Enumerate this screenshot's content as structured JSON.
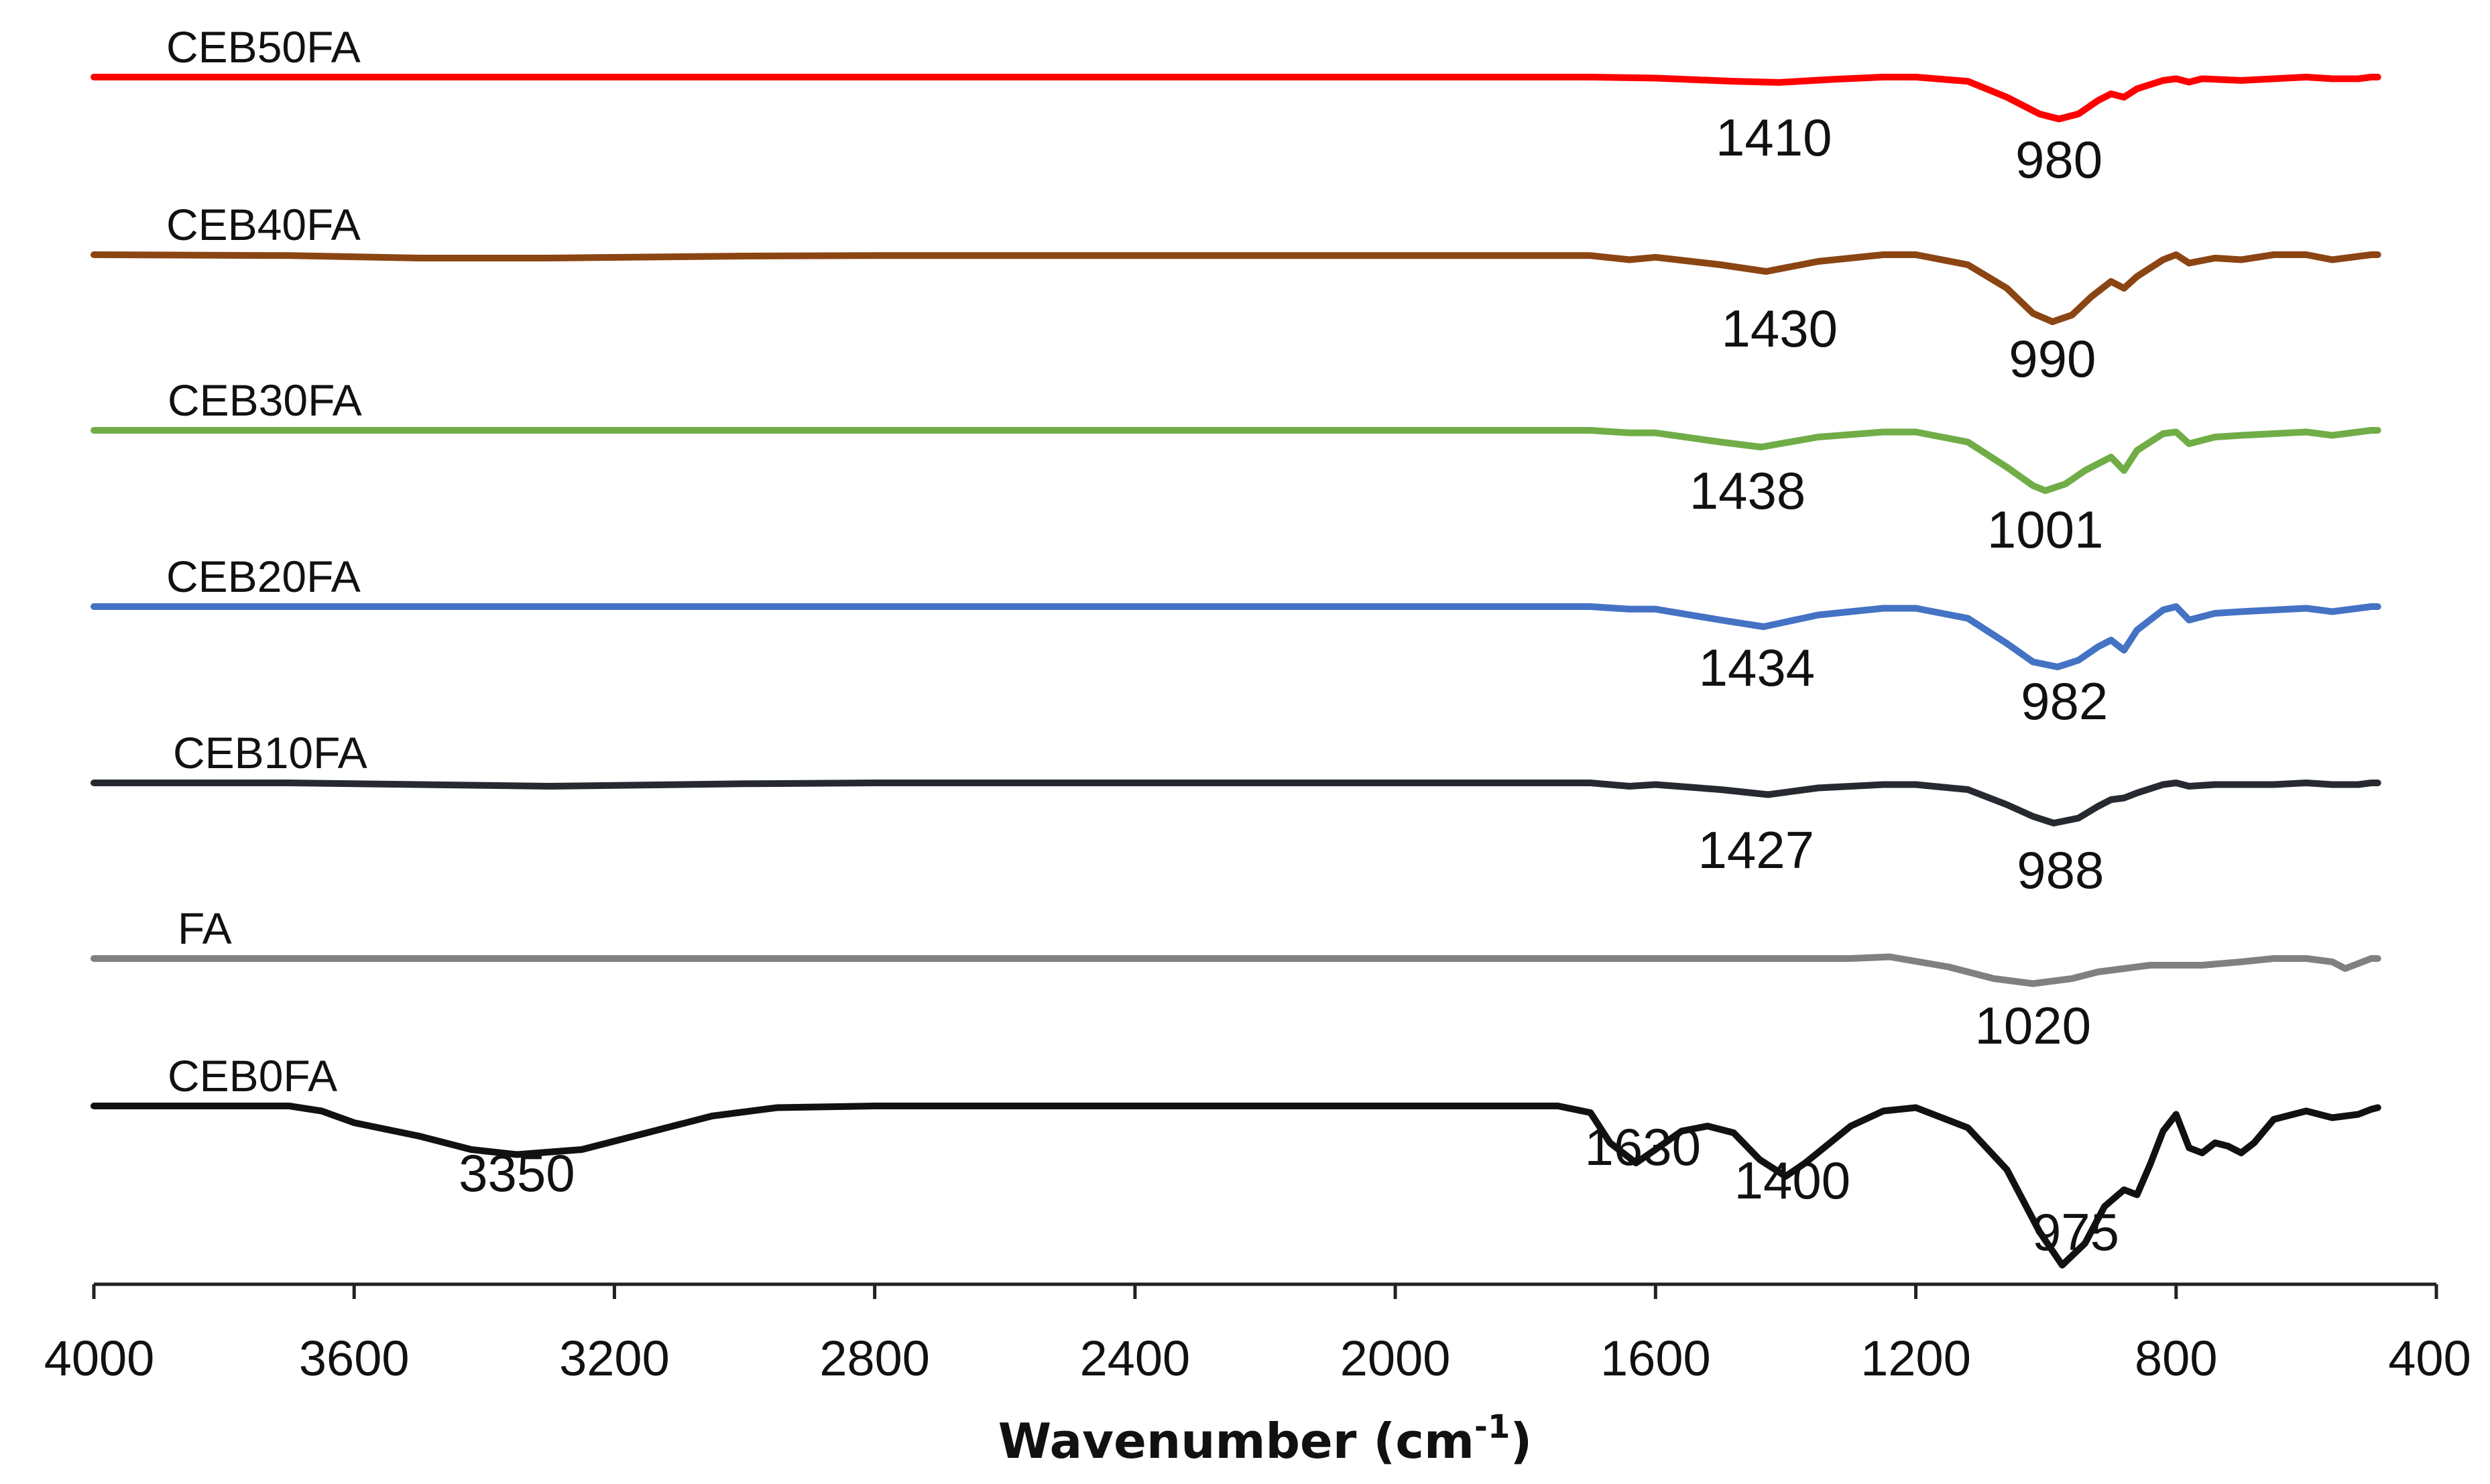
{
  "chart_data": {
    "type": "line",
    "title": "",
    "xlabel": "Wavenumber (cm",
    "xlabel_sup": "-1",
    "xlabel_close": ")",
    "ylabel": "",
    "xlim": [
      4000,
      400
    ],
    "x_ticks": [
      4000,
      3600,
      3200,
      2800,
      2400,
      2000,
      1600,
      1200,
      800,
      400
    ],
    "x_tick_labels": [
      "4000",
      "3600",
      "3200",
      "2800",
      "2400",
      "2000",
      "1600",
      "1200",
      "800",
      "400"
    ],
    "x_reversed": true,
    "grid": false,
    "legend": "none",
    "y_scale": "stacked offset transmittance (no y-axis shown)",
    "series": [
      {
        "name": "CEB50FA",
        "color": "#ff0000",
        "peaks": [
          {
            "x": 1410,
            "label": "1410"
          },
          {
            "x": 980,
            "label": "980"
          }
        ],
        "points": [
          [
            4000,
            0
          ],
          [
            3700,
            0
          ],
          [
            3200,
            0
          ],
          [
            2800,
            0
          ],
          [
            2000,
            0
          ],
          [
            1700,
            0
          ],
          [
            1600,
            -0.6
          ],
          [
            1480,
            -2.5
          ],
          [
            1410,
            -3.2
          ],
          [
            1330,
            -1.4
          ],
          [
            1250,
            0
          ],
          [
            1200,
            0
          ],
          [
            1120,
            -2.5
          ],
          [
            1060,
            -12
          ],
          [
            1010,
            -22
          ],
          [
            980,
            -25
          ],
          [
            950,
            -22
          ],
          [
            920,
            -14
          ],
          [
            900,
            -10
          ],
          [
            880,
            -12
          ],
          [
            860,
            -7
          ],
          [
            820,
            -2
          ],
          [
            800,
            -1
          ],
          [
            780,
            -3
          ],
          [
            760,
            -1
          ],
          [
            700,
            -2
          ],
          [
            650,
            -1
          ],
          [
            600,
            0
          ],
          [
            560,
            -1
          ],
          [
            520,
            -1
          ],
          [
            500,
            0
          ],
          [
            490,
            0
          ]
        ]
      },
      {
        "name": "CEB40FA",
        "color": "#8b4513",
        "peaks": [
          {
            "x": 1430,
            "label": "1430"
          },
          {
            "x": 990,
            "label": "990"
          }
        ],
        "points": [
          [
            4000,
            0
          ],
          [
            3700,
            -0.5
          ],
          [
            3500,
            -2
          ],
          [
            3300,
            -2
          ],
          [
            3000,
            -0.8
          ],
          [
            2800,
            -0.5
          ],
          [
            2000,
            -0.5
          ],
          [
            1700,
            -0.5
          ],
          [
            1640,
            -3
          ],
          [
            1600,
            -1.5
          ],
          [
            1500,
            -6
          ],
          [
            1430,
            -10
          ],
          [
            1350,
            -4
          ],
          [
            1250,
            0
          ],
          [
            1200,
            0
          ],
          [
            1120,
            -6
          ],
          [
            1060,
            -20
          ],
          [
            1020,
            -35
          ],
          [
            990,
            -40
          ],
          [
            960,
            -36
          ],
          [
            930,
            -25
          ],
          [
            900,
            -16
          ],
          [
            880,
            -20
          ],
          [
            860,
            -13
          ],
          [
            820,
            -3
          ],
          [
            800,
            0
          ],
          [
            780,
            -5
          ],
          [
            740,
            -2
          ],
          [
            700,
            -3
          ],
          [
            650,
            0
          ],
          [
            600,
            0
          ],
          [
            560,
            -3
          ],
          [
            520,
            -1
          ],
          [
            500,
            0
          ],
          [
            490,
            0
          ]
        ]
      },
      {
        "name": "CEB30FA",
        "color": "#70ad47",
        "peaks": [
          {
            "x": 1438,
            "label": "1438"
          },
          {
            "x": 1001,
            "label": "1001"
          }
        ],
        "points": [
          [
            4000,
            0
          ],
          [
            3700,
            0
          ],
          [
            3200,
            0
          ],
          [
            2800,
            0
          ],
          [
            2000,
            0
          ],
          [
            1700,
            0
          ],
          [
            1640,
            -1.5
          ],
          [
            1600,
            -1.5
          ],
          [
            1500,
            -7
          ],
          [
            1438,
            -10
          ],
          [
            1350,
            -4
          ],
          [
            1250,
            -1
          ],
          [
            1200,
            -1
          ],
          [
            1120,
            -7
          ],
          [
            1060,
            -22
          ],
          [
            1020,
            -33
          ],
          [
            1001,
            -36
          ],
          [
            970,
            -32
          ],
          [
            940,
            -24
          ],
          [
            900,
            -16
          ],
          [
            880,
            -24
          ],
          [
            860,
            -12
          ],
          [
            820,
            -2
          ],
          [
            800,
            -1
          ],
          [
            780,
            -8
          ],
          [
            740,
            -4
          ],
          [
            700,
            -3
          ],
          [
            650,
            -2
          ],
          [
            600,
            -1
          ],
          [
            560,
            -3
          ],
          [
            520,
            -1
          ],
          [
            500,
            0
          ],
          [
            490,
            0
          ]
        ]
      },
      {
        "name": "CEB20FA",
        "color": "#4472c4",
        "peaks": [
          {
            "x": 1434,
            "label": "1434"
          },
          {
            "x": 982,
            "label": "982"
          }
        ],
        "points": [
          [
            4000,
            0
          ],
          [
            3700,
            0
          ],
          [
            3200,
            0
          ],
          [
            2800,
            0
          ],
          [
            2000,
            0
          ],
          [
            1700,
            0
          ],
          [
            1640,
            -1.5
          ],
          [
            1600,
            -1.5
          ],
          [
            1500,
            -8
          ],
          [
            1434,
            -12
          ],
          [
            1350,
            -5
          ],
          [
            1250,
            -1
          ],
          [
            1200,
            -1
          ],
          [
            1120,
            -7
          ],
          [
            1060,
            -22
          ],
          [
            1020,
            -33
          ],
          [
            982,
            -36
          ],
          [
            950,
            -32
          ],
          [
            920,
            -24
          ],
          [
            900,
            -20
          ],
          [
            880,
            -26
          ],
          [
            860,
            -14
          ],
          [
            820,
            -2
          ],
          [
            800,
            0
          ],
          [
            780,
            -8
          ],
          [
            740,
            -4
          ],
          [
            700,
            -3
          ],
          [
            650,
            -2
          ],
          [
            600,
            -1
          ],
          [
            560,
            -3
          ],
          [
            520,
            -1
          ],
          [
            500,
            0
          ],
          [
            490,
            0
          ]
        ]
      },
      {
        "name": "CEB10FA",
        "color": "#262a30",
        "peaks": [
          {
            "x": 1427,
            "label": "1427"
          },
          {
            "x": 988,
            "label": "988"
          }
        ],
        "points": [
          [
            4000,
            0
          ],
          [
            3700,
            0
          ],
          [
            3500,
            -1
          ],
          [
            3300,
            -2
          ],
          [
            3000,
            -0.5
          ],
          [
            2800,
            0
          ],
          [
            2000,
            0
          ],
          [
            1700,
            0
          ],
          [
            1640,
            -2
          ],
          [
            1600,
            -1
          ],
          [
            1500,
            -4
          ],
          [
            1427,
            -7
          ],
          [
            1350,
            -3
          ],
          [
            1250,
            -1
          ],
          [
            1200,
            -1
          ],
          [
            1120,
            -4
          ],
          [
            1060,
            -13
          ],
          [
            1020,
            -20
          ],
          [
            988,
            -24
          ],
          [
            950,
            -21
          ],
          [
            920,
            -14
          ],
          [
            900,
            -10
          ],
          [
            880,
            -9
          ],
          [
            860,
            -6
          ],
          [
            820,
            -1
          ],
          [
            800,
            0
          ],
          [
            780,
            -2
          ],
          [
            740,
            -1
          ],
          [
            700,
            -1
          ],
          [
            650,
            -1
          ],
          [
            600,
            0
          ],
          [
            560,
            -1
          ],
          [
            520,
            -1
          ],
          [
            500,
            0
          ],
          [
            490,
            0
          ]
        ]
      },
      {
        "name": "FA",
        "color": "#808080",
        "peaks": [
          {
            "x": 1020,
            "label": "1020"
          }
        ],
        "points": [
          [
            4000,
            0
          ],
          [
            3700,
            0
          ],
          [
            3200,
            0
          ],
          [
            2800,
            0
          ],
          [
            2000,
            0
          ],
          [
            1700,
            0
          ],
          [
            1600,
            0
          ],
          [
            1500,
            0
          ],
          [
            1300,
            0
          ],
          [
            1240,
            1
          ],
          [
            1150,
            -5
          ],
          [
            1080,
            -12
          ],
          [
            1020,
            -15
          ],
          [
            960,
            -12
          ],
          [
            920,
            -8
          ],
          [
            880,
            -6
          ],
          [
            840,
            -4
          ],
          [
            800,
            -4
          ],
          [
            760,
            -4
          ],
          [
            700,
            -2
          ],
          [
            650,
            0
          ],
          [
            600,
            0
          ],
          [
            560,
            -2
          ],
          [
            540,
            -6
          ],
          [
            520,
            -3
          ],
          [
            500,
            0
          ],
          [
            490,
            0
          ]
        ]
      },
      {
        "name": "CEB0FA",
        "color": "#111111",
        "peaks": [
          {
            "x": 3350,
            "label": "3350"
          },
          {
            "x": 1630,
            "label": "1630"
          },
          {
            "x": 1400,
            "label": "1400"
          },
          {
            "x": 975,
            "label": "975"
          }
        ],
        "points": [
          [
            4000,
            0
          ],
          [
            3700,
            0
          ],
          [
            3650,
            -3
          ],
          [
            3600,
            -10
          ],
          [
            3500,
            -18
          ],
          [
            3420,
            -26
          ],
          [
            3350,
            -29
          ],
          [
            3250,
            -26
          ],
          [
            3150,
            -16
          ],
          [
            3050,
            -6
          ],
          [
            2950,
            -1
          ],
          [
            2800,
            0
          ],
          [
            2000,
            0
          ],
          [
            1750,
            0
          ],
          [
            1700,
            -4
          ],
          [
            1670,
            -22
          ],
          [
            1630,
            -34
          ],
          [
            1600,
            -26
          ],
          [
            1560,
            -15
          ],
          [
            1520,
            -12
          ],
          [
            1480,
            -16
          ],
          [
            1440,
            -32
          ],
          [
            1400,
            -42
          ],
          [
            1370,
            -34
          ],
          [
            1300,
            -12
          ],
          [
            1250,
            -3
          ],
          [
            1200,
            -1
          ],
          [
            1120,
            -13
          ],
          [
            1060,
            -38
          ],
          [
            1010,
            -75
          ],
          [
            975,
            -95
          ],
          [
            940,
            -82
          ],
          [
            910,
            -60
          ],
          [
            880,
            -50
          ],
          [
            860,
            -53
          ],
          [
            840,
            -35
          ],
          [
            820,
            -15
          ],
          [
            800,
            -5
          ],
          [
            780,
            -25
          ],
          [
            760,
            -28
          ],
          [
            740,
            -22
          ],
          [
            720,
            -24
          ],
          [
            700,
            -28
          ],
          [
            680,
            -22
          ],
          [
            650,
            -8
          ],
          [
            620,
            -5
          ],
          [
            600,
            -3
          ],
          [
            560,
            -7
          ],
          [
            520,
            -5
          ],
          [
            500,
            -2
          ],
          [
            490,
            -1
          ]
        ]
      }
    ]
  }
}
